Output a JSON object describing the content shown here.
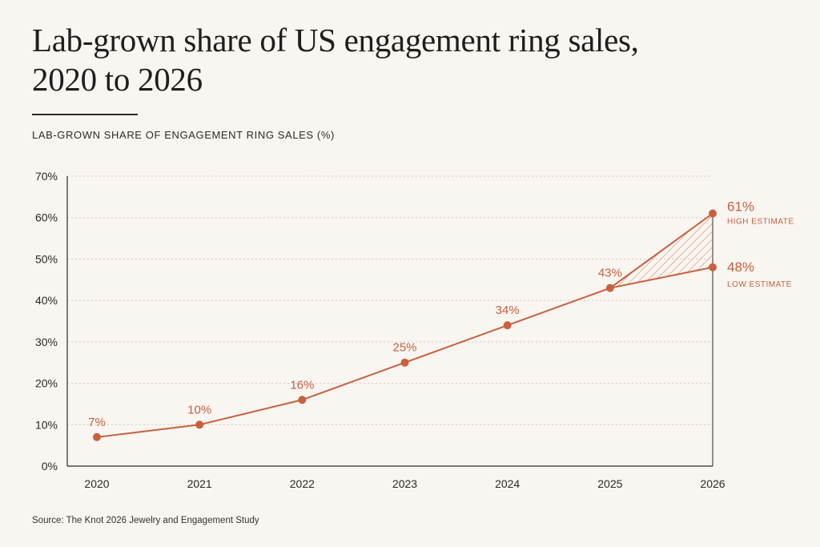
{
  "title": "Lab-grown share of US engagement ring sales, 2020 to 2026",
  "subtitle": "LAB-GROWN SHARE OF ENGAGEMENT RING SALES (%)",
  "source": "Source: The Knot 2026 Jewelry and Engagement Study",
  "colors": {
    "accent": "#c9603e",
    "axis": "#2a2a2a",
    "grid": "#cfc9c2",
    "background": "#f9f5f0"
  },
  "chart_data": {
    "type": "line",
    "x": [
      "2020",
      "2021",
      "2022",
      "2023",
      "2024",
      "2025"
    ],
    "values": [
      7,
      10,
      16,
      25,
      34,
      43
    ],
    "data_labels": [
      "7%",
      "10%",
      "16%",
      "25%",
      "34%",
      "43%"
    ],
    "projection": {
      "from_x": "2025",
      "x": "2026",
      "high": 61,
      "low": 48,
      "high_label": "61%",
      "low_label": "48%",
      "high_caption": "HIGH ESTIMATE",
      "low_caption": "LOW ESTIMATE"
    },
    "x_ticks": [
      "2020",
      "2021",
      "2022",
      "2023",
      "2024",
      "2025",
      "2026"
    ],
    "y_ticks": [
      "0%",
      "10%",
      "20%",
      "30%",
      "40%",
      "50%",
      "60%",
      "70%"
    ],
    "ylim": [
      0,
      70
    ],
    "grid": true,
    "ylabel": "LAB-GROWN SHARE OF ENGAGEMENT RING SALES (%)"
  }
}
